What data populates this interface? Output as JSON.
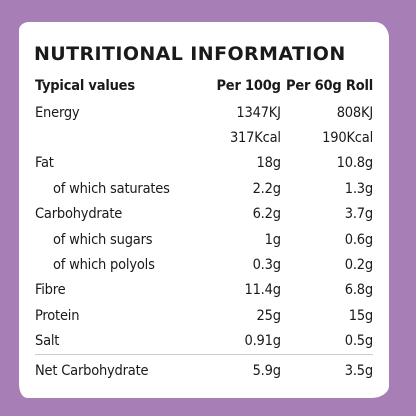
{
  "title": "NUTRITIONAL INFORMATION",
  "colors": {
    "background": "#a77fb6",
    "panel": "#ffffff",
    "text": "#1a1a1a"
  },
  "table": {
    "headers": {
      "name": "Typical values",
      "per_100g": "Per 100g",
      "per_roll": "Per 60g Roll"
    },
    "rows": [
      {
        "name": "Energy",
        "per_100g": "1347KJ",
        "per_roll": "808KJ"
      },
      {
        "name": "",
        "per_100g": "317Kcal",
        "per_roll": "190Kcal"
      },
      {
        "name": "Fat",
        "per_100g": "18g",
        "per_roll": "10.8g"
      },
      {
        "name": "of which saturates",
        "per_100g": "2.2g",
        "per_roll": "1.3g"
      },
      {
        "name": "Carbohydrate",
        "per_100g": "6.2g",
        "per_roll": "3.7g"
      },
      {
        "name": "of which sugars",
        "per_100g": "1g",
        "per_roll": "0.6g"
      },
      {
        "name": "of which polyols",
        "per_100g": "0.3g",
        "per_roll": "0.2g"
      },
      {
        "name": "Fibre",
        "per_100g": "11.4g",
        "per_roll": "6.8g"
      },
      {
        "name": "Protein",
        "per_100g": "25g",
        "per_roll": "15g"
      },
      {
        "name": "Salt",
        "per_100g": "0.91g",
        "per_roll": "0.5g"
      },
      {
        "name": "Net Carbohydrate",
        "per_100g": "5.9g",
        "per_roll": "3.5g"
      }
    ]
  }
}
